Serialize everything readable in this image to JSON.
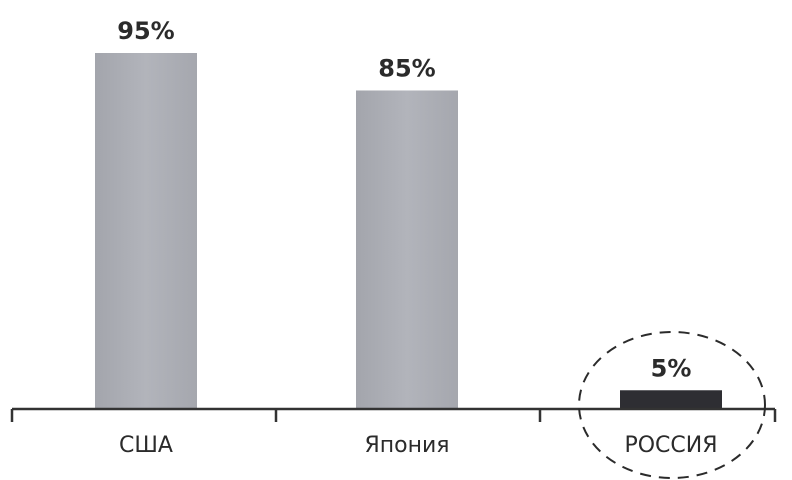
{
  "chart_data": {
    "type": "bar",
    "categories": [
      "США",
      "Япония",
      "РОССИЯ"
    ],
    "values": [
      95,
      85,
      5
    ],
    "value_labels": [
      "95%",
      "85%",
      "5%"
    ],
    "ylim": [
      0,
      100
    ],
    "grid": false,
    "colors": [
      "#a9abb2",
      "#a9abb2",
      "#2e2e33"
    ],
    "highlight_category": "РОССИЯ",
    "highlight_style": "dashed-circle"
  }
}
